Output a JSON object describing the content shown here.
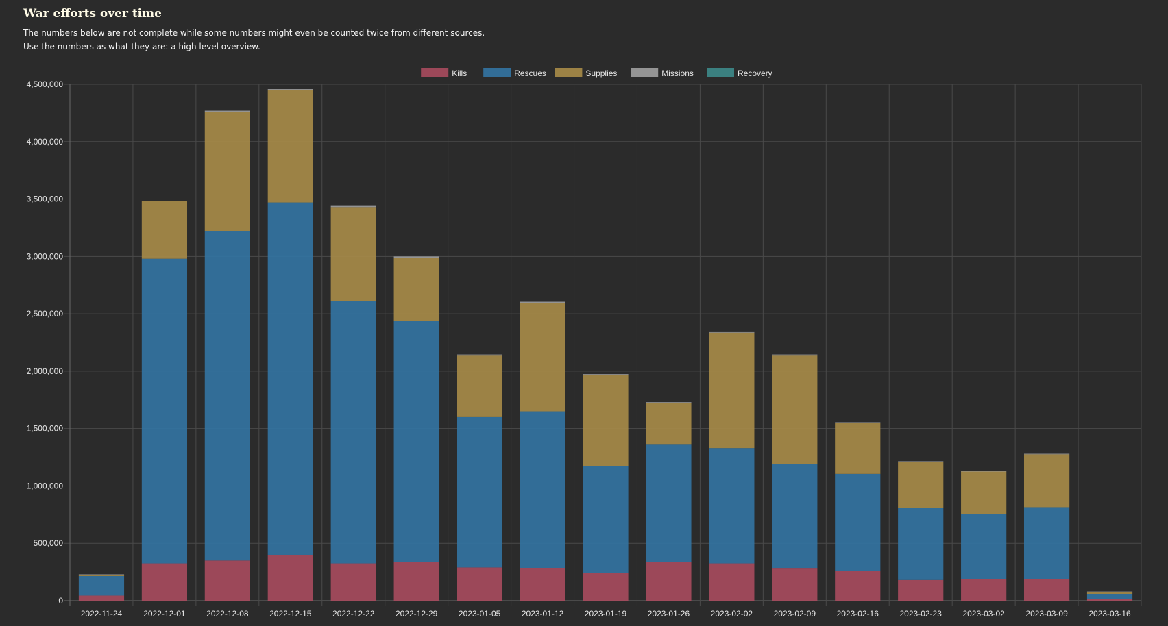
{
  "header": {
    "title": "War efforts over time",
    "description_line1": "The numbers below are not complete while some numbers might even be counted twice from different sources.",
    "description_line2": "Use the numbers as what they are: a high level overview."
  },
  "chart_data": {
    "type": "bar",
    "stacked": true,
    "title": "",
    "xlabel": "",
    "ylabel": "",
    "ylim": [
      0,
      4500000
    ],
    "ytick_step": 500000,
    "ytick_labels": [
      "0",
      "500,000",
      "1,000,000",
      "1,500,000",
      "2,000,000",
      "2,500,000",
      "3,000,000",
      "3,500,000",
      "4,000,000",
      "4,500,000"
    ],
    "grid": true,
    "legend_position": "top-center",
    "categories": [
      "2022-11-24",
      "2022-12-01",
      "2022-12-08",
      "2022-12-15",
      "2022-12-22",
      "2022-12-29",
      "2023-01-05",
      "2023-01-12",
      "2023-01-19",
      "2023-01-26",
      "2023-02-02",
      "2023-02-09",
      "2023-02-16",
      "2023-02-23",
      "2023-03-02",
      "2023-03-09",
      "2023-03-16"
    ],
    "series": [
      {
        "name": "Kills",
        "color": "#a84b5e",
        "values": [
          45000,
          325000,
          350000,
          400000,
          325000,
          335000,
          290000,
          285000,
          240000,
          335000,
          325000,
          280000,
          260000,
          180000,
          190000,
          190000,
          15000
        ]
      },
      {
        "name": "Rescues",
        "color": "#3374a3",
        "values": [
          170000,
          2655000,
          2870000,
          3070000,
          2285000,
          2105000,
          1310000,
          1365000,
          930000,
          1030000,
          1005000,
          910000,
          845000,
          630000,
          565000,
          625000,
          40000
        ]
      },
      {
        "name": "Supplies",
        "color": "#a88c48",
        "values": [
          10000,
          500000,
          1040000,
          980000,
          820000,
          550000,
          535000,
          945000,
          800000,
          360000,
          1005000,
          945000,
          445000,
          400000,
          370000,
          460000,
          20000
        ]
      },
      {
        "name": "Missions",
        "color": "#a0a0a0",
        "values": [
          5000,
          5000,
          10000,
          8000,
          10000,
          10000,
          10000,
          10000,
          5000,
          5000,
          5000,
          10000,
          5000,
          5000,
          5000,
          5000,
          5000
        ]
      },
      {
        "name": "Recovery",
        "color": "#3d8a8a",
        "values": [
          0,
          0,
          0,
          0,
          0,
          0,
          0,
          0,
          0,
          0,
          0,
          0,
          0,
          0,
          0,
          0,
          0
        ]
      }
    ]
  }
}
